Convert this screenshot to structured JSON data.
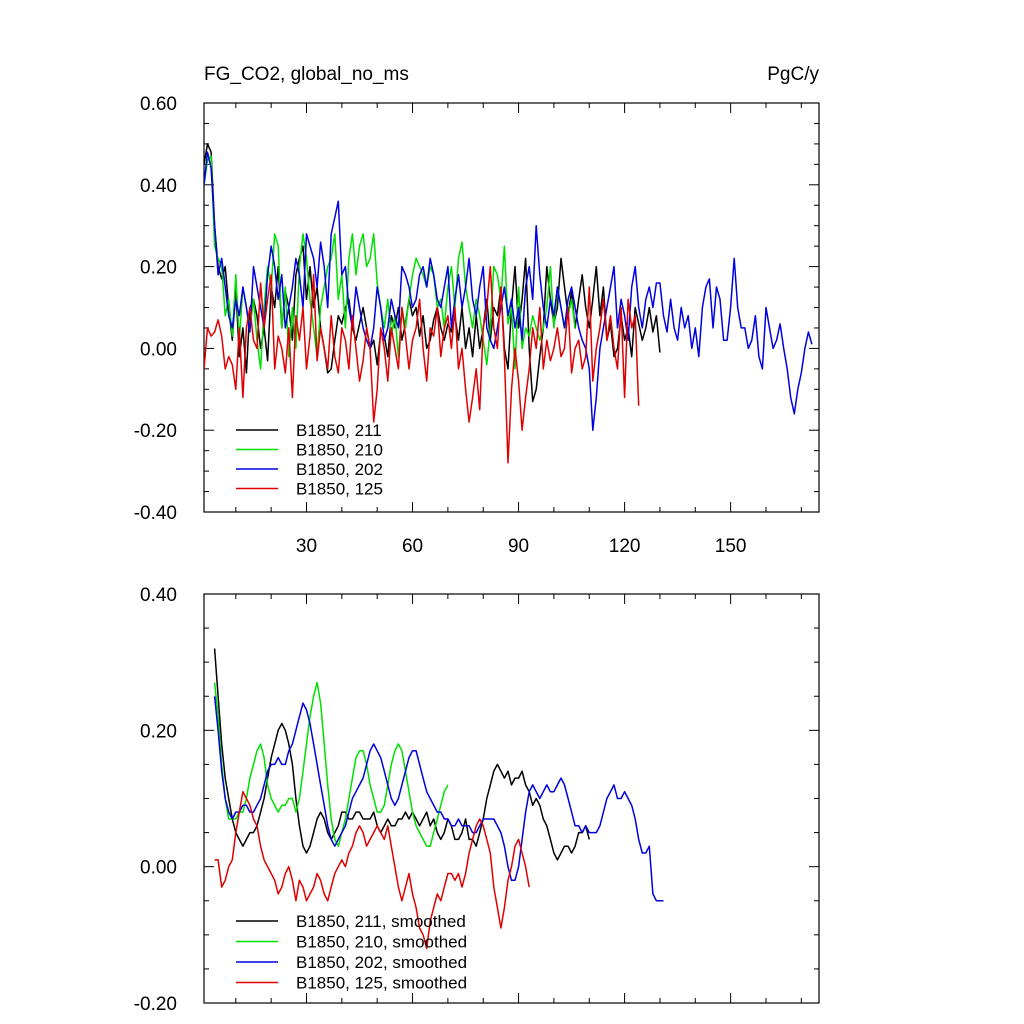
{
  "chart_data": [
    {
      "type": "line",
      "title": "FG_CO2, global_no_ms",
      "units": "PgC/y",
      "xlim": [
        1,
        175
      ],
      "ylim": [
        -0.4,
        0.6
      ],
      "xticks": [
        30,
        60,
        90,
        120,
        150
      ],
      "xtick_labels": [
        "30",
        "60",
        "90",
        "120",
        "150"
      ],
      "yticks": [
        -0.4,
        -0.2,
        0.0,
        0.2,
        0.4,
        0.6
      ],
      "ytick_labels": [
        "-0.40",
        "-0.20",
        "0.00",
        "0.20",
        "0.40",
        "0.60"
      ],
      "legend_position": "bottom-left",
      "series": [
        {
          "name": "B1850, 211",
          "color": "#000000",
          "x_start": 1,
          "values": [
            0.45,
            0.5,
            0.48,
            0.3,
            0.2,
            0.17,
            0.2,
            0.1,
            0.02,
            0.15,
            -0.02,
            0.05,
            -0.06,
            0.1,
            0.12,
            0.08,
            0.0,
            0.05,
            -0.03,
            0.15,
            0.1,
            0.2,
            0.05,
            0.14,
            0.1,
            0.02,
            0.18,
            0.22,
            0.25,
            0.12,
            0.2,
            0.1,
            0.15,
            0.05,
            0.0,
            -0.06,
            -0.05,
            0.02,
            0.08,
            0.06,
            0.1,
            0.12,
            0.05,
            0.02,
            0.06,
            0.1,
            0.05,
            0.0,
            0.02,
            -0.04,
            0.04,
            0.03,
            -0.02,
            0.08,
            0.05,
            0.1,
            0.02,
            0.06,
            0.12,
            0.08,
            0.1,
            0.03,
            0.08,
            0.0,
            0.02,
            0.07,
            0.1,
            0.05,
            0.02,
            0.06,
            0.04,
            0.08,
            0.02,
            0.1,
            0.0,
            0.05,
            -0.02,
            0.08,
            0.0,
            0.05,
            0.12,
            0.02,
            0.1,
            0.08,
            0.15,
            0.0,
            -0.05,
            0.1,
            0.2,
            0.05,
            0.12,
            0.22,
            0.0,
            -0.13,
            -0.1,
            -0.02,
            0.05,
            0.2,
            0.12,
            0.06,
            0.1,
            0.22,
            0.15,
            0.08,
            0.14,
            0.05,
            0.12,
            0.18,
            0.1,
            0.05,
            0.12,
            0.2,
            0.08,
            0.15,
            0.02,
            0.06,
            -0.02,
            0.0,
            0.08,
            0.02,
            0.05,
            -0.02,
            0.1,
            0.06,
            0.02,
            0.05,
            0.1,
            0.04,
            0.08,
            -0.01
          ]
        },
        {
          "name": "B1850, 210",
          "color": "#00e000",
          "x_start": 1,
          "values": [
            0.4,
            0.46,
            0.47,
            0.25,
            0.22,
            0.2,
            0.08,
            0.12,
            0.03,
            0.18,
            0.02,
            0.15,
            0.1,
            0.05,
            0.12,
            0.02,
            -0.05,
            0.1,
            0.2,
            0.15,
            0.28,
            0.25,
            0.05,
            0.15,
            -0.02,
            0.1,
            0.0,
            0.2,
            0.28,
            0.22,
            0.12,
            0.05,
            -0.02,
            0.1,
            0.15,
            0.2,
            0.22,
            0.28,
            0.12,
            0.18,
            0.05,
            0.22,
            0.28,
            0.18,
            0.25,
            0.28,
            0.2,
            0.22,
            0.28,
            0.16,
            0.1,
            0.05,
            0.12,
            0.03,
            0.08,
            -0.02,
            0.1,
            0.05,
            0.12,
            0.18,
            0.22,
            0.2,
            0.18,
            0.15,
            0.2,
            0.18,
            0.1,
            0.12,
            0.05,
            0.15,
            0.2,
            0.1,
            0.22,
            0.26,
            0.15,
            0.1,
            0.05,
            0.12,
            0.08,
            0.02,
            -0.04,
            0.05,
            0.2,
            0.18,
            0.12,
            0.25,
            0.06,
            0.1,
            -0.05,
            0.15,
            0.0,
            0.05,
            0.03,
            0.08,
            0.05,
            0.02,
            0.05,
            0.1,
            0.2,
            0.05,
            0.15,
            0.1,
            0.05,
            0.08,
            0.12,
            0.05
          ]
        },
        {
          "name": "B1850, 202",
          "color": "#0000e0",
          "x_start": 1,
          "values": [
            0.4,
            0.48,
            0.44,
            0.3,
            0.18,
            0.22,
            0.15,
            0.08,
            0.05,
            0.12,
            0.08,
            0.15,
            0.1,
            0.04,
            0.2,
            0.15,
            0.1,
            0.05,
            0.18,
            0.25,
            0.2,
            0.12,
            0.18,
            0.05,
            0.1,
            0.15,
            0.22,
            0.18,
            0.1,
            0.28,
            0.25,
            0.22,
            0.15,
            0.26,
            0.2,
            0.1,
            0.28,
            0.32,
            0.36,
            0.18,
            0.2,
            0.1,
            0.05,
            0.15,
            0.1,
            0.05,
            0.02,
            0.0,
            0.05,
            0.15,
            0.1,
            0.02,
            0.05,
            0.12,
            0.08,
            0.05,
            0.2,
            0.18,
            0.15,
            0.1,
            0.12,
            0.18,
            0.2,
            0.15,
            0.22,
            0.18,
            0.12,
            0.1,
            0.15,
            0.2,
            0.05,
            0.12,
            0.18,
            0.1,
            0.15,
            0.22,
            0.12,
            0.08,
            0.15,
            0.2,
            0.05,
            0.02,
            0.0,
            0.05,
            0.1,
            0.15,
            0.08,
            0.12,
            0.05,
            0.1,
            0.02,
            0.15,
            0.2,
            0.12,
            0.3,
            0.18,
            0.1,
            0.05,
            0.12,
            0.08,
            0.15,
            0.1,
            0.05,
            0.12,
            0.15,
            0.1,
            0.05,
            0.02,
            0.0,
            -0.05,
            -0.2,
            -0.12,
            0.0,
            0.05,
            0.1,
            0.15,
            0.2,
            0.05,
            0.12,
            0.08,
            0.02,
            0.15,
            0.2,
            0.1,
            0.05,
            0.12,
            0.15,
            0.1,
            0.16,
            0.16,
            0.08,
            0.04,
            0.12,
            0.05,
            0.02,
            0.1,
            0.05,
            0.08,
            0.0,
            0.05,
            -0.02,
            0.1,
            0.15,
            0.17,
            0.05,
            0.15,
            0.12,
            0.02,
            0.02,
            0.1,
            0.22,
            0.1,
            0.05,
            0.05,
            0.0,
            0.02,
            0.08,
            -0.02,
            -0.05,
            0.1,
            0.05,
            0.0,
            0.02,
            0.06,
            0.0,
            -0.05,
            -0.12,
            -0.16,
            -0.1,
            -0.06,
            0.0,
            0.04,
            0.01
          ]
        },
        {
          "name": "B1850, 125",
          "color": "#e00000",
          "x_start": 1,
          "values": [
            -0.05,
            0.05,
            0.03,
            0.04,
            0.07,
            0.03,
            -0.05,
            -0.02,
            -0.04,
            -0.1,
            0.05,
            -0.12,
            0.05,
            0.1,
            0.02,
            0.0,
            0.16,
            0.05,
            0.12,
            0.18,
            -0.05,
            0.03,
            0.0,
            -0.06,
            0.05,
            -0.12,
            0.08,
            0.02,
            0.1,
            -0.05,
            0.03,
            0.18,
            -0.03,
            0.05,
            0.0,
            -0.05,
            0.08,
            -0.02,
            -0.06,
            0.05,
            0.02,
            -0.05,
            0.08,
            0.0,
            -0.08,
            -0.03,
            0.05,
            0.0,
            -0.18,
            -0.1,
            0.05,
            0.0,
            -0.08,
            0.05,
            0.0,
            -0.05,
            0.1,
            0.03,
            -0.05,
            0.02,
            0.05,
            0.12,
            0.0,
            -0.08,
            0.05,
            0.03,
            0.1,
            -0.02,
            0.05,
            0.08,
            0.0,
            0.1,
            -0.05,
            0.0,
            -0.1,
            -0.18,
            -0.12,
            -0.05,
            -0.15,
            0.05,
            0.1,
            0.2,
            0.05,
            0.0,
            0.15,
            -0.02,
            -0.28,
            -0.1,
            0.0,
            -0.08,
            -0.2,
            -0.12,
            -0.05,
            0.05,
            0.0,
            0.1,
            -0.05,
            0.02,
            -0.03,
            0.0,
            0.05,
            -0.02,
            0.0,
            0.1,
            -0.06,
            0.0,
            0.02,
            -0.05,
            -0.02,
            0.15,
            -0.08,
            0.0,
            0.05,
            0.12,
            0.02,
            0.08,
            0.0,
            -0.05,
            0.1,
            -0.12,
            0.12,
            0.05,
            0.08,
            -0.14
          ]
        }
      ]
    },
    {
      "type": "line",
      "title": "",
      "xlim": [
        1,
        175
      ],
      "ylim": [
        -0.2,
        0.4
      ],
      "xticks": [
        30,
        60,
        90,
        120,
        150
      ],
      "xtick_labels": [],
      "yticks": [
        -0.2,
        0.0,
        0.2,
        0.4
      ],
      "ytick_labels": [
        "-0.20",
        "0.00",
        "0.20",
        "0.40"
      ],
      "legend_position": "bottom-left",
      "series": [
        {
          "name": "B1850, 211, smoothed",
          "color": "#000000",
          "x_start": 4,
          "values": [
            0.32,
            0.25,
            0.18,
            0.13,
            0.1,
            0.07,
            0.05,
            0.04,
            0.03,
            0.04,
            0.05,
            0.05,
            0.06,
            0.08,
            0.1,
            0.13,
            0.16,
            0.18,
            0.2,
            0.21,
            0.2,
            0.18,
            0.15,
            0.1,
            0.06,
            0.03,
            0.02,
            0.03,
            0.05,
            0.07,
            0.08,
            0.07,
            0.05,
            0.04,
            0.05,
            0.06,
            0.08,
            0.08,
            0.07,
            0.07,
            0.08,
            0.08,
            0.07,
            0.07,
            0.07,
            0.08,
            0.06,
            0.05,
            0.06,
            0.07,
            0.06,
            0.06,
            0.07,
            0.07,
            0.08,
            0.07,
            0.08,
            0.07,
            0.06,
            0.07,
            0.08,
            0.06,
            0.07,
            0.05,
            0.04,
            0.05,
            0.07,
            0.06,
            0.04,
            0.04,
            0.05,
            0.07,
            0.04,
            0.04,
            0.03,
            0.05,
            0.07,
            0.1,
            0.12,
            0.14,
            0.15,
            0.14,
            0.13,
            0.14,
            0.12,
            0.13,
            0.13,
            0.14,
            0.12,
            0.11,
            0.09,
            0.1,
            0.09,
            0.07,
            0.06,
            0.04,
            0.02,
            0.01,
            0.02,
            0.03,
            0.03,
            0.02,
            0.03,
            0.05,
            0.05,
            0.06,
            0.04
          ]
        },
        {
          "name": "B1850, 210, smoothed",
          "color": "#00e000",
          "x_start": 4,
          "values": [
            0.27,
            0.22,
            0.15,
            0.1,
            0.07,
            0.07,
            0.07,
            0.08,
            0.08,
            0.1,
            0.13,
            0.15,
            0.17,
            0.18,
            0.16,
            0.12,
            0.1,
            0.09,
            0.08,
            0.09,
            0.09,
            0.1,
            0.1,
            0.08,
            0.1,
            0.14,
            0.18,
            0.22,
            0.25,
            0.27,
            0.24,
            0.18,
            0.12,
            0.07,
            0.04,
            0.03,
            0.05,
            0.07,
            0.1,
            0.13,
            0.16,
            0.17,
            0.17,
            0.15,
            0.12,
            0.1,
            0.08,
            0.08,
            0.09,
            0.12,
            0.15,
            0.17,
            0.18,
            0.17,
            0.14,
            0.11,
            0.08,
            0.06,
            0.05,
            0.04,
            0.03,
            0.03,
            0.05,
            0.07,
            0.09,
            0.11,
            0.12
          ]
        },
        {
          "name": "B1850, 202, smoothed",
          "color": "#0000e0",
          "x_start": 4,
          "values": [
            0.25,
            0.2,
            0.14,
            0.1,
            0.08,
            0.07,
            0.08,
            0.08,
            0.09,
            0.09,
            0.08,
            0.08,
            0.09,
            0.1,
            0.12,
            0.14,
            0.15,
            0.15,
            0.16,
            0.15,
            0.15,
            0.17,
            0.18,
            0.2,
            0.22,
            0.24,
            0.23,
            0.21,
            0.18,
            0.15,
            0.12,
            0.09,
            0.06,
            0.04,
            0.03,
            0.04,
            0.05,
            0.06,
            0.08,
            0.1,
            0.11,
            0.12,
            0.13,
            0.15,
            0.17,
            0.18,
            0.17,
            0.16,
            0.14,
            0.12,
            0.1,
            0.09,
            0.1,
            0.12,
            0.14,
            0.16,
            0.17,
            0.17,
            0.15,
            0.13,
            0.11,
            0.1,
            0.09,
            0.08,
            0.08,
            0.07,
            0.07,
            0.06,
            0.06,
            0.07,
            0.06,
            0.06,
            0.06,
            0.05,
            0.05,
            0.06,
            0.07,
            0.07,
            0.07,
            0.07,
            0.06,
            0.05,
            0.03,
            0.0,
            -0.02,
            -0.02,
            0.0,
            0.04,
            0.08,
            0.11,
            0.12,
            0.11,
            0.1,
            0.11,
            0.12,
            0.11,
            0.11,
            0.12,
            0.13,
            0.12,
            0.1,
            0.08,
            0.06,
            0.06,
            0.05,
            0.06,
            0.05,
            0.05,
            0.05,
            0.06,
            0.08,
            0.1,
            0.11,
            0.12,
            0.1,
            0.1,
            0.11,
            0.1,
            0.09,
            0.07,
            0.04,
            0.02,
            0.02,
            0.03,
            -0.04,
            -0.05,
            -0.05,
            -0.05
          ]
        },
        {
          "name": "B1850, 125, smoothed",
          "color": "#e00000",
          "x_start": 4,
          "values": [
            0.01,
            0.01,
            -0.03,
            -0.02,
            0.0,
            0.01,
            0.05,
            0.08,
            0.11,
            0.1,
            0.09,
            0.07,
            0.06,
            0.03,
            0.01,
            0.0,
            -0.01,
            -0.02,
            -0.04,
            -0.03,
            -0.01,
            0.0,
            -0.02,
            -0.05,
            -0.02,
            -0.03,
            -0.05,
            -0.04,
            -0.03,
            -0.01,
            -0.02,
            -0.04,
            -0.05,
            -0.03,
            -0.01,
            0.0,
            0.01,
            0.0,
            0.02,
            0.03,
            0.05,
            0.06,
            0.05,
            0.03,
            0.04,
            0.05,
            0.06,
            0.05,
            0.04,
            0.06,
            0.03,
            0.0,
            -0.03,
            -0.05,
            -0.03,
            -0.01,
            -0.04,
            -0.06,
            -0.09,
            -0.1,
            -0.12,
            -0.08,
            -0.06,
            -0.04,
            -0.05,
            -0.03,
            -0.01,
            -0.01,
            -0.02,
            -0.01,
            -0.03,
            -0.01,
            0.02,
            0.04,
            0.06,
            0.07,
            0.06,
            0.04,
            0.02,
            -0.03,
            -0.06,
            -0.09,
            -0.06,
            -0.02,
            0.0,
            0.03,
            0.04,
            0.02,
            0.0,
            -0.03
          ]
        }
      ]
    }
  ]
}
